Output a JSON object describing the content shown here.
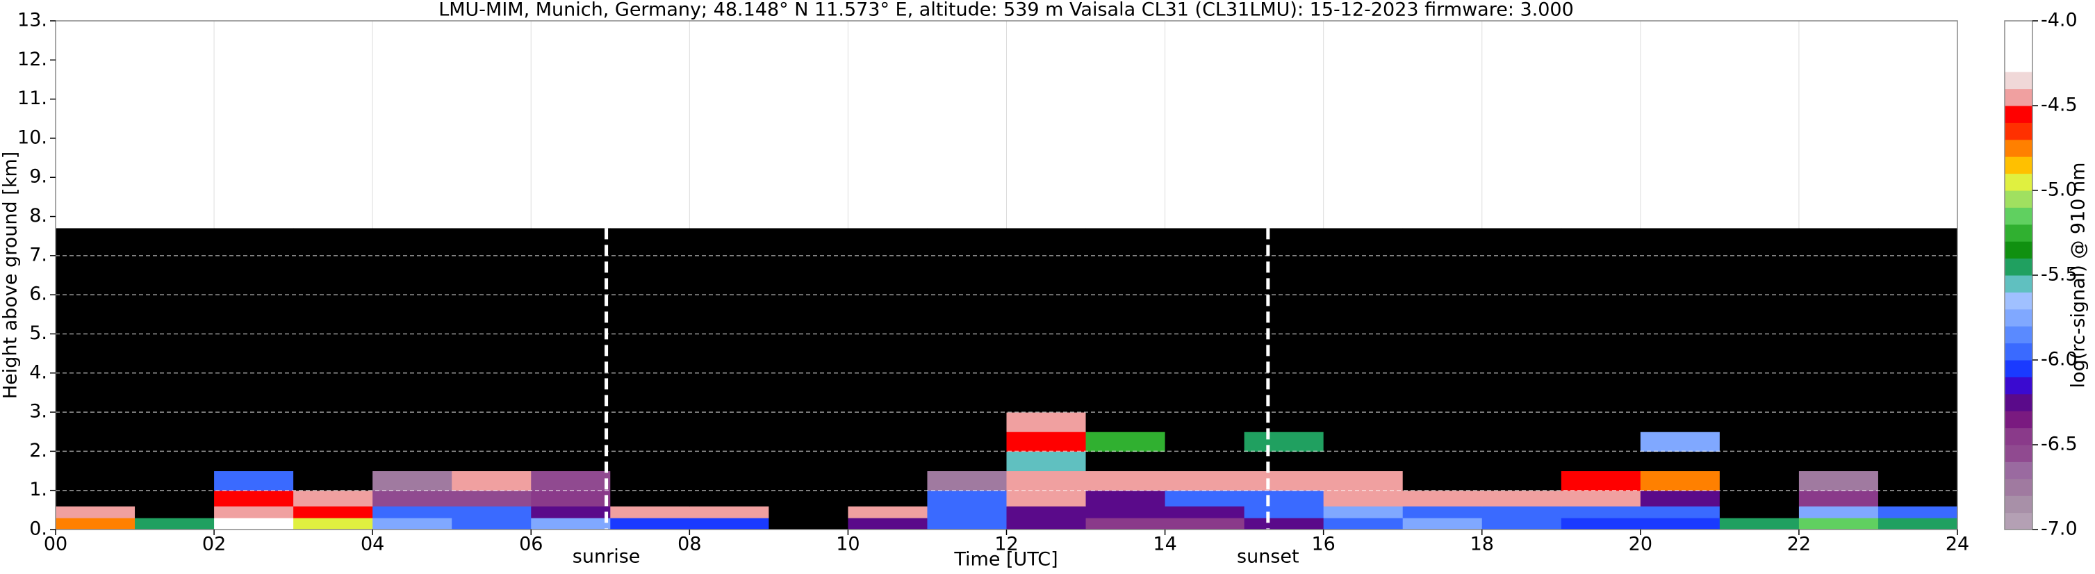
{
  "chart_data": {
    "type": "heatmap",
    "title": "LMU-MIM, Munich, Germany; 48.148° N 11.573° E, altitude: 539 m    Vaisala CL31 (CL31LMU): 15-12-2023    firmware: 3.000",
    "x_label": "Time [UTC]",
    "y_label": "Height above ground [km]",
    "colorbar_label": "log(rc-signal) @ 910 nm",
    "xlim": [
      0,
      24
    ],
    "ylim": [
      0,
      13
    ],
    "xticks": [
      {
        "value": 0,
        "label": "00"
      },
      {
        "value": 2,
        "label": "02"
      },
      {
        "value": 4,
        "label": "04"
      },
      {
        "value": 6,
        "label": "06"
      },
      {
        "value": 8,
        "label": "08"
      },
      {
        "value": 10,
        "label": "10"
      },
      12,
      14,
      16,
      18,
      20,
      22,
      24
    ],
    "yticks": [
      {
        "value": 0,
        "label": "0."
      },
      {
        "value": 1,
        "label": "1."
      },
      {
        "value": 2,
        "label": "2."
      },
      {
        "value": 3,
        "label": "3."
      },
      {
        "value": 4,
        "label": "4."
      },
      {
        "value": 5,
        "label": "5."
      },
      {
        "value": 6,
        "label": "6."
      },
      {
        "value": 7,
        "label": "7."
      },
      {
        "value": 8,
        "label": "8."
      },
      {
        "value": 9,
        "label": "9."
      },
      {
        "value": 10,
        "label": "10."
      },
      {
        "value": 11,
        "label": "11."
      },
      {
        "value": 12,
        "label": "12."
      },
      {
        "value": 13,
        "label": "13."
      }
    ],
    "grid": true,
    "x_edges": [
      0,
      1,
      2,
      3,
      4,
      5,
      6,
      7,
      8,
      9,
      10,
      11,
      12,
      13,
      14,
      15,
      16,
      17,
      18,
      19,
      20,
      21,
      22,
      23,
      24
    ],
    "y_edges": [
      0,
      0.3,
      0.6,
      1,
      1.5,
      2,
      2.5,
      3,
      5,
      7.7
    ],
    "z": [
      [
        -4.8,
        -5.5,
        -4.3,
        -5.0,
        -5.8,
        -5.9,
        -5.8,
        -6.1,
        -6.1,
        -7.5,
        -6.3,
        -5.9,
        -6.3,
        -6.4,
        -6.4,
        -6.3,
        -5.9,
        -5.8,
        -5.9,
        -6.1,
        -6.1,
        -5.5,
        -5.2,
        -5.4
      ],
      [
        -4.4,
        -7.3,
        -4.4,
        -4.6,
        -6.0,
        -6.0,
        -6.2,
        -4.4,
        -4.4,
        -7.5,
        -4.5,
        -6.0,
        -6.2,
        -6.2,
        -6.2,
        -6.0,
        -5.8,
        -5.9,
        -5.9,
        -5.9,
        -6.0,
        -7.3,
        -5.8,
        -6.0
      ],
      [
        -7.3,
        -7.3,
        -4.6,
        -4.4,
        -6.6,
        -6.6,
        -6.5,
        -7.3,
        -7.3,
        -7.5,
        -7.3,
        -5.9,
        -4.4,
        -6.2,
        -6.0,
        -5.9,
        -4.4,
        -4.4,
        -4.4,
        -4.5,
        -6.3,
        -7.3,
        -6.4,
        -7.3
      ],
      [
        -7.3,
        -7.3,
        -6.0,
        -7.3,
        -6.7,
        -4.5,
        -6.6,
        -7.3,
        -7.3,
        -7.5,
        -7.3,
        -6.8,
        -4.5,
        -4.4,
        -4.4,
        -4.4,
        -4.5,
        -7.3,
        -7.3,
        -4.6,
        -4.8,
        -7.3,
        -6.8,
        -7.3
      ],
      [
        -7.3,
        -7.3,
        -7.3,
        -7.3,
        -7.3,
        -7.3,
        -7.3,
        -7.3,
        -7.3,
        -7.5,
        -7.3,
        -7.3,
        -5.6,
        -7.3,
        -7.3,
        -7.3,
        -7.3,
        -7.3,
        -7.3,
        -7.3,
        -7.3,
        -7.3,
        -7.3,
        -7.3
      ],
      [
        -7.3,
        -7.3,
        -7.3,
        -7.3,
        -7.3,
        -7.3,
        -7.3,
        -7.3,
        -7.3,
        -7.5,
        -7.3,
        -7.3,
        -4.6,
        -5.3,
        -7.3,
        -5.5,
        -7.3,
        -7.3,
        -7.3,
        -7.3,
        -5.8,
        -7.3,
        -7.3,
        -7.3
      ],
      [
        -7.3,
        -7.3,
        -7.3,
        -7.3,
        -7.3,
        -7.3,
        -7.3,
        -7.3,
        -7.3,
        -7.5,
        -7.3,
        -7.3,
        -4.5,
        -7.3,
        -7.3,
        -7.3,
        -7.3,
        -7.3,
        -7.3,
        -7.3,
        -7.3,
        -7.3,
        -7.3,
        -7.3
      ],
      [
        -7.3,
        -7.3,
        -7.3,
        -7.3,
        -7.3,
        -7.3,
        -7.3,
        -7.3,
        -7.3,
        -7.5,
        -7.3,
        -7.3,
        -7.3,
        -7.3,
        -7.3,
        -7.3,
        -7.3,
        -7.3,
        -7.3,
        -7.3,
        -7.3,
        -7.3,
        -7.3,
        -7.3
      ],
      [
        -7.3,
        -7.3,
        -7.3,
        -7.3,
        -7.3,
        -7.3,
        -7.3,
        -7.3,
        -7.3,
        -7.5,
        -7.3,
        -7.3,
        -7.3,
        -7.3,
        -7.3,
        -7.3,
        -7.3,
        -7.3,
        -7.3,
        -7.3,
        -7.3,
        -7.3,
        -7.3,
        -7.3
      ]
    ],
    "clim": [
      -7,
      -4
    ],
    "cticks": [
      {
        "value": -7,
        "label": "-7.0"
      },
      -6.5,
      {
        "value": -6,
        "label": "-6.0"
      },
      -5.5,
      {
        "value": -5,
        "label": "-5.0"
      },
      -4.5,
      {
        "value": -4,
        "label": "-4.0"
      }
    ],
    "colors": [
      "#b4a0b4",
      "#a890a8",
      "#a07aa0",
      "#9a6aa0",
      "#904a90",
      "#8a3a8a",
      "#7a1a80",
      "#5a0a8a",
      "#3a0ad0",
      "#1a3aff",
      "#3a6aff",
      "#5a8aff",
      "#80a8ff",
      "#a0c0ff",
      "#60c0c0",
      "#20a060",
      "#109010",
      "#30b030",
      "#60d060",
      "#a0e060",
      "#e0f040",
      "#ffc000",
      "#ff8000",
      "#ff3000",
      "#ff0000",
      "#f0a0a0",
      "#f0d8d8",
      "#ffffff",
      "#ffffff",
      "#ffffff"
    ],
    "under_color": "#000000",
    "markers": [
      {
        "x": 6.95,
        "label": "sunrise"
      },
      {
        "x": 15.3,
        "label": "sunset"
      }
    ]
  }
}
